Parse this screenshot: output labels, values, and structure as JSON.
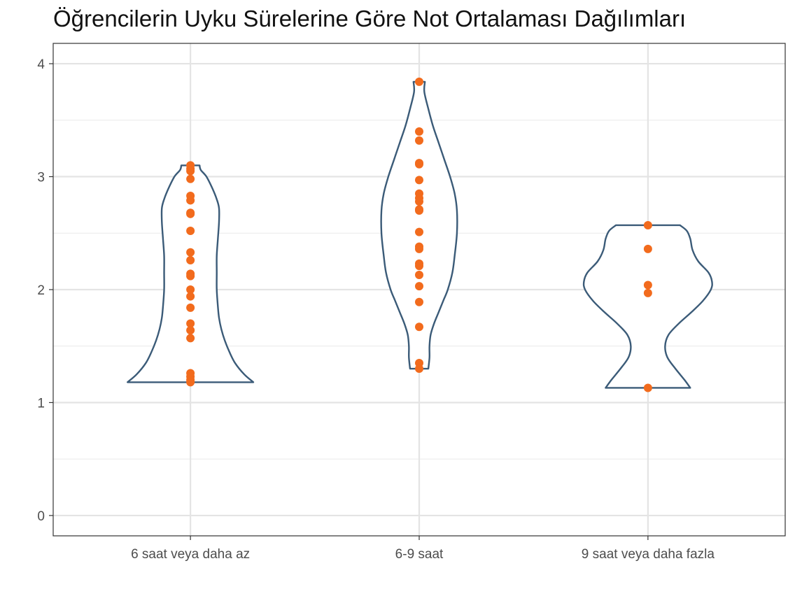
{
  "chart_data": {
    "type": "violin",
    "title": "Öğrencilerin Uyku Sürelerine Göre Not Ortalaması Dağılımları",
    "xlabel": "",
    "ylabel": "",
    "categories": [
      "6 saat veya daha az",
      "6-9 saat",
      "9 saat veya daha fazla"
    ],
    "ylim": [
      -0.18,
      4.18
    ],
    "yticks": [
      0,
      1,
      2,
      3,
      4
    ],
    "grid": true,
    "legend": "none",
    "colors": {
      "violin_outline": "#3b5b78",
      "points": "#f26b1d"
    },
    "violins": [
      {
        "category": "6 saat veya daha az",
        "min": 1.18,
        "max": 3.1,
        "profile": [
          [
            1.18,
            0.55
          ],
          [
            1.25,
            0.47
          ],
          [
            1.35,
            0.39
          ],
          [
            1.45,
            0.34
          ],
          [
            1.55,
            0.3
          ],
          [
            1.65,
            0.27
          ],
          [
            1.75,
            0.25
          ],
          [
            1.85,
            0.24
          ],
          [
            2.0,
            0.23
          ],
          [
            2.15,
            0.23
          ],
          [
            2.3,
            0.23
          ],
          [
            2.45,
            0.24
          ],
          [
            2.6,
            0.25
          ],
          [
            2.72,
            0.25
          ],
          [
            2.8,
            0.23
          ],
          [
            2.9,
            0.19
          ],
          [
            3.0,
            0.14
          ],
          [
            3.06,
            0.09
          ],
          [
            3.1,
            0.08
          ]
        ],
        "points": [
          3.1,
          3.07,
          3.05,
          2.98,
          2.83,
          2.79,
          2.68,
          2.67,
          2.52,
          2.33,
          2.26,
          2.14,
          2.12,
          2.0,
          1.94,
          1.84,
          1.7,
          1.64,
          1.57,
          1.26,
          1.23,
          1.2,
          1.18
        ]
      },
      {
        "category": "6-9 saat",
        "min": 1.3,
        "max": 3.84,
        "profile": [
          [
            1.3,
            0.08
          ],
          [
            1.4,
            0.09
          ],
          [
            1.5,
            0.09
          ],
          [
            1.6,
            0.1
          ],
          [
            1.7,
            0.13
          ],
          [
            1.8,
            0.17
          ],
          [
            1.9,
            0.21
          ],
          [
            2.0,
            0.25
          ],
          [
            2.15,
            0.29
          ],
          [
            2.3,
            0.31
          ],
          [
            2.5,
            0.33
          ],
          [
            2.7,
            0.33
          ],
          [
            2.85,
            0.31
          ],
          [
            3.0,
            0.27
          ],
          [
            3.15,
            0.22
          ],
          [
            3.3,
            0.17
          ],
          [
            3.45,
            0.12
          ],
          [
            3.6,
            0.08
          ],
          [
            3.75,
            0.045
          ],
          [
            3.84,
            0.05
          ]
        ],
        "points": [
          3.84,
          3.4,
          3.32,
          3.12,
          3.11,
          2.97,
          2.85,
          2.81,
          2.78,
          2.71,
          2.7,
          2.51,
          2.38,
          2.36,
          2.23,
          2.21,
          2.13,
          2.03,
          1.89,
          1.67,
          1.35,
          1.3
        ]
      },
      {
        "category": "9 saat veya daha fazla",
        "min": 1.13,
        "max": 2.57,
        "profile": [
          [
            1.13,
            0.37
          ],
          [
            1.2,
            0.32
          ],
          [
            1.3,
            0.24
          ],
          [
            1.4,
            0.17
          ],
          [
            1.5,
            0.15
          ],
          [
            1.6,
            0.18
          ],
          [
            1.7,
            0.27
          ],
          [
            1.8,
            0.38
          ],
          [
            1.9,
            0.48
          ],
          [
            2.0,
            0.55
          ],
          [
            2.07,
            0.56
          ],
          [
            2.15,
            0.53
          ],
          [
            2.25,
            0.44
          ],
          [
            2.35,
            0.39
          ],
          [
            2.45,
            0.37
          ],
          [
            2.52,
            0.34
          ],
          [
            2.57,
            0.28
          ]
        ],
        "points": [
          2.57,
          2.36,
          2.04,
          1.97,
          1.13
        ]
      }
    ]
  }
}
